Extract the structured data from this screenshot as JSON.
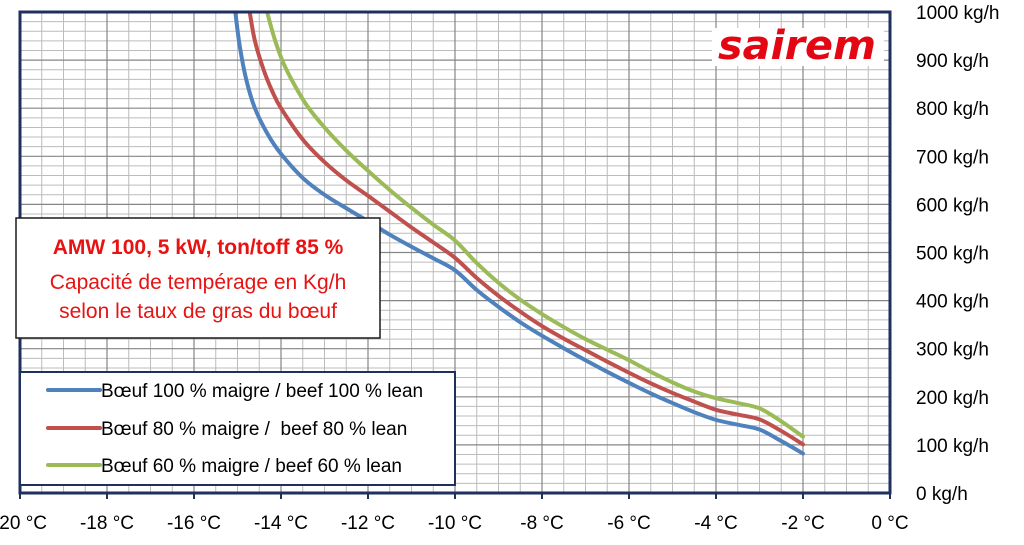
{
  "chart_data": {
    "type": "line",
    "xlim": [
      -20,
      0
    ],
    "ylim": [
      0,
      1000
    ],
    "x_ticks": [
      -20,
      -18,
      -16,
      -14,
      -12,
      -10,
      -8,
      -6,
      -4,
      -2,
      0
    ],
    "x_tick_labels": [
      "-20 °C",
      "-18 °C",
      "-16 °C",
      "-14 °C",
      "-12 °C",
      "-10 °C",
      "-8 °C",
      "-6 °C",
      "-4 °C",
      "-2 °C",
      "0 °C"
    ],
    "y_ticks": [
      0,
      100,
      200,
      300,
      400,
      500,
      600,
      700,
      800,
      900,
      1000
    ],
    "y_tick_labels": [
      "0 kg/h",
      "100 kg/h",
      "200 kg/h",
      "300 kg/h",
      "400 kg/h",
      "500 kg/h",
      "600 kg/h",
      "700 kg/h",
      "800 kg/h",
      "900 kg/h",
      "1000 kg/h"
    ],
    "grid": {
      "x_major": 2,
      "x_minor": 0.5,
      "y_major": 100,
      "y_minor": 20
    },
    "legend_position": "bottom-left",
    "series": [
      {
        "name": "Bœuf 100 % maigre / beef 100 % lean",
        "color": "#4f81bd",
        "points": [
          [
            -15.05,
            1000
          ],
          [
            -14.95,
            930
          ],
          [
            -14.8,
            860
          ],
          [
            -14.6,
            800
          ],
          [
            -14.3,
            745
          ],
          [
            -14.0,
            705
          ],
          [
            -13.5,
            655
          ],
          [
            -13.0,
            620
          ],
          [
            -12.5,
            592
          ],
          [
            -12.0,
            565
          ],
          [
            -11.5,
            537
          ],
          [
            -11.0,
            512
          ],
          [
            -10.5,
            488
          ],
          [
            -10.0,
            463
          ],
          [
            -9.5,
            422
          ],
          [
            -9.0,
            387
          ],
          [
            -8.5,
            355
          ],
          [
            -8.0,
            327
          ],
          [
            -7.5,
            301
          ],
          [
            -7.0,
            276
          ],
          [
            -6.5,
            252
          ],
          [
            -6.0,
            229
          ],
          [
            -5.5,
            207
          ],
          [
            -5.0,
            187
          ],
          [
            -4.5,
            168
          ],
          [
            -4.0,
            152
          ],
          [
            -3.5,
            142
          ],
          [
            -3.0,
            132
          ],
          [
            -2.5,
            108
          ],
          [
            -2.0,
            82
          ]
        ]
      },
      {
        "name": "Bœuf 80 % maigre /  beef 80 % lean",
        "color": "#c0504d",
        "points": [
          [
            -14.72,
            1000
          ],
          [
            -14.6,
            940
          ],
          [
            -14.4,
            880
          ],
          [
            -14.2,
            835
          ],
          [
            -14.0,
            800
          ],
          [
            -13.5,
            735
          ],
          [
            -13.0,
            688
          ],
          [
            -12.5,
            650
          ],
          [
            -12.0,
            618
          ],
          [
            -11.5,
            585
          ],
          [
            -11.0,
            552
          ],
          [
            -10.5,
            521
          ],
          [
            -10.0,
            489
          ],
          [
            -9.5,
            447
          ],
          [
            -9.0,
            410
          ],
          [
            -8.5,
            377
          ],
          [
            -8.0,
            347
          ],
          [
            -7.5,
            321
          ],
          [
            -7.0,
            297
          ],
          [
            -6.5,
            273
          ],
          [
            -6.0,
            250
          ],
          [
            -5.5,
            228
          ],
          [
            -5.0,
            208
          ],
          [
            -4.5,
            190
          ],
          [
            -4.0,
            173
          ],
          [
            -3.5,
            163
          ],
          [
            -3.0,
            153
          ],
          [
            -2.5,
            129
          ],
          [
            -2.0,
            101
          ]
        ]
      },
      {
        "name": "Bœuf 60 % maigre / beef 60 % lean",
        "color": "#9bbb59",
        "points": [
          [
            -14.32,
            1000
          ],
          [
            -14.15,
            945
          ],
          [
            -13.95,
            895
          ],
          [
            -13.7,
            850
          ],
          [
            -13.4,
            805
          ],
          [
            -13.0,
            760
          ],
          [
            -12.5,
            712
          ],
          [
            -12.0,
            670
          ],
          [
            -11.5,
            630
          ],
          [
            -11.0,
            593
          ],
          [
            -10.5,
            558
          ],
          [
            -10.0,
            525
          ],
          [
            -9.5,
            478
          ],
          [
            -9.0,
            437
          ],
          [
            -8.5,
            402
          ],
          [
            -8.0,
            372
          ],
          [
            -7.5,
            345
          ],
          [
            -7.0,
            320
          ],
          [
            -6.5,
            298
          ],
          [
            -6.0,
            276
          ],
          [
            -5.5,
            252
          ],
          [
            -5.0,
            230
          ],
          [
            -4.5,
            211
          ],
          [
            -4.0,
            197
          ],
          [
            -3.5,
            187
          ],
          [
            -3.0,
            176
          ],
          [
            -2.5,
            149
          ],
          [
            -2.0,
            117
          ]
        ]
      }
    ],
    "annotation": {
      "lines": [
        "AMW 100, 5 kW, ton/toff 85 %",
        "Capacité de tempérage en Kg/h",
        "selon le taux de gras du bœuf"
      ],
      "color": "#e81212"
    }
  },
  "logo": {
    "text": "sairem",
    "color": "#e30613"
  },
  "colors": {
    "plot_border": "#1f2f5e",
    "legend_border": "#1f2f5e",
    "grid_major": "#858585",
    "grid_minor": "#bcbcbc"
  }
}
